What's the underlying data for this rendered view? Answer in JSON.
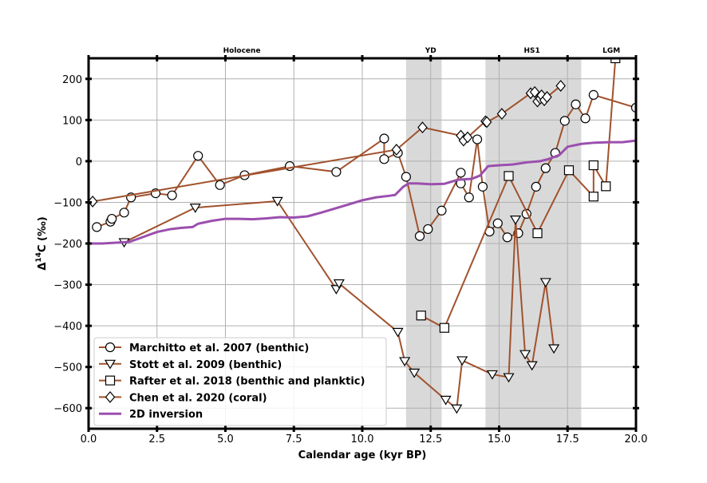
{
  "chart_data": {
    "type": "line",
    "xlabel": "Calendar age (kyr BP)",
    "ylabel_main": "Δ",
    "ylabel_sup": "14",
    "ylabel_rest": "C (‰)",
    "xlim": [
      0,
      20
    ],
    "ylim": [
      -650,
      250
    ],
    "xticks": [
      0,
      2.5,
      5,
      7.5,
      10,
      12.5,
      15,
      17.5,
      20
    ],
    "xtick_labels": [
      "0.0",
      "2.5",
      "5.0",
      "7.5",
      "10.0",
      "12.5",
      "15.0",
      "17.5",
      "20.0"
    ],
    "yticks": [
      200,
      100,
      0,
      -100,
      -200,
      -300,
      -400,
      -500,
      -600
    ],
    "ytick_labels": [
      "200",
      "100",
      "0",
      "−100",
      "−200",
      "−300",
      "−400",
      "−500",
      "−600"
    ],
    "grid": true,
    "legend_position": "lower-left",
    "bands": [
      {
        "label": "Holocene",
        "x0": null,
        "x1": null,
        "center": 5.6
      },
      {
        "label": "YD",
        "x0": 11.6,
        "x1": 12.9,
        "center": 12.5
      },
      {
        "label": "HS1",
        "x0": 14.5,
        "x1": 18.0,
        "center": 16.2
      },
      {
        "label": "LGM",
        "x0": null,
        "x1": null,
        "center": 19.1
      }
    ],
    "series": [
      {
        "name": "Marchitto et al. 2007 (benthic)",
        "color": "#a0522d",
        "marker": "circle",
        "points": [
          [
            0.3,
            -160
          ],
          [
            0.8,
            -147
          ],
          [
            0.85,
            -140
          ],
          [
            1.3,
            -125
          ],
          [
            1.55,
            -88
          ],
          [
            2.45,
            -78
          ],
          [
            3.05,
            -83
          ],
          [
            4.0,
            13
          ],
          [
            4.8,
            -58
          ],
          [
            5.7,
            -34
          ],
          [
            7.35,
            -12
          ],
          [
            9.05,
            -26
          ],
          [
            10.8,
            55
          ],
          [
            10.8,
            5
          ],
          [
            11.3,
            20
          ],
          [
            11.6,
            -38
          ],
          [
            12.1,
            -182
          ],
          [
            12.4,
            -165
          ],
          [
            12.9,
            -120
          ],
          [
            13.6,
            -28
          ],
          [
            13.6,
            -54
          ],
          [
            13.9,
            -88
          ],
          [
            14.2,
            53
          ],
          [
            14.4,
            -62
          ],
          [
            14.65,
            -171
          ],
          [
            14.95,
            -151
          ],
          [
            15.3,
            -185
          ],
          [
            15.7,
            -175
          ],
          [
            16.0,
            -128
          ],
          [
            16.35,
            -62
          ],
          [
            16.7,
            -17
          ],
          [
            17.05,
            20
          ],
          [
            17.4,
            98
          ],
          [
            17.8,
            138
          ],
          [
            18.15,
            104
          ],
          [
            18.45,
            161
          ],
          [
            20.0,
            130
          ]
        ]
      },
      {
        "name": "Stott et al. 2009 (benthic)",
        "color": "#a0522d",
        "marker": "triangle-down",
        "points": [
          [
            1.3,
            -197
          ],
          [
            3.9,
            -113
          ],
          [
            6.9,
            -97
          ],
          [
            9.05,
            -311
          ],
          [
            9.15,
            -297
          ],
          [
            11.3,
            -415
          ],
          [
            11.55,
            -486
          ],
          [
            11.9,
            -514
          ],
          [
            13.05,
            -580
          ],
          [
            13.45,
            -601
          ],
          [
            13.65,
            -484
          ],
          [
            14.75,
            -518
          ],
          [
            15.35,
            -525
          ],
          [
            15.6,
            -142
          ],
          [
            15.95,
            -469
          ],
          [
            16.2,
            -496
          ],
          [
            16.7,
            -294
          ],
          [
            17.0,
            -455
          ]
        ]
      },
      {
        "name": "Rafter et al. 2018 (benthic and planktic)",
        "color": "#a0522d",
        "marker": "square",
        "points": [
          [
            12.15,
            -375
          ],
          [
            13.0,
            -405
          ],
          [
            15.35,
            -36
          ],
          [
            16.4,
            -175
          ],
          [
            17.55,
            -22
          ],
          [
            18.45,
            -86
          ],
          [
            18.45,
            -10
          ],
          [
            18.9,
            -61
          ],
          [
            19.25,
            250
          ]
        ]
      },
      {
        "name": "Chen et al. 2020 (coral)",
        "color": "#a0522d",
        "marker": "diamond",
        "points": [
          [
            0.15,
            -98
          ],
          [
            11.25,
            28
          ],
          [
            12.2,
            82
          ],
          [
            13.6,
            62
          ],
          [
            13.7,
            50
          ],
          [
            13.85,
            58
          ],
          [
            14.5,
            97
          ],
          [
            14.55,
            95
          ],
          [
            15.1,
            115
          ],
          [
            16.15,
            165
          ],
          [
            16.3,
            168
          ],
          [
            16.4,
            145
          ],
          [
            16.5,
            152
          ],
          [
            16.55,
            160
          ],
          [
            16.65,
            148
          ],
          [
            16.75,
            156
          ],
          [
            17.25,
            183
          ]
        ]
      },
      {
        "name": "2D inversion",
        "color": "#9b4fae",
        "marker": "none",
        "points": [
          [
            0.0,
            -200
          ],
          [
            0.5,
            -200
          ],
          [
            1.0,
            -198
          ],
          [
            1.5,
            -196
          ],
          [
            2.0,
            -184
          ],
          [
            2.5,
            -172
          ],
          [
            3.0,
            -165
          ],
          [
            3.4,
            -162
          ],
          [
            3.8,
            -160
          ],
          [
            4.0,
            -152
          ],
          [
            4.5,
            -145
          ],
          [
            5.0,
            -140
          ],
          [
            5.5,
            -140
          ],
          [
            6.0,
            -141
          ],
          [
            6.5,
            -139
          ],
          [
            7.0,
            -136
          ],
          [
            7.5,
            -137
          ],
          [
            8.0,
            -134
          ],
          [
            8.5,
            -125
          ],
          [
            9.0,
            -115
          ],
          [
            9.5,
            -105
          ],
          [
            10.0,
            -95
          ],
          [
            10.5,
            -88
          ],
          [
            11.0,
            -84
          ],
          [
            11.2,
            -82
          ],
          [
            11.5,
            -62
          ],
          [
            11.7,
            -54
          ],
          [
            12.0,
            -54
          ],
          [
            12.5,
            -56
          ],
          [
            13.0,
            -55
          ],
          [
            13.5,
            -45
          ],
          [
            14.0,
            -43
          ],
          [
            14.3,
            -35
          ],
          [
            14.6,
            -12
          ],
          [
            15.0,
            -10
          ],
          [
            15.5,
            -8
          ],
          [
            16.0,
            -3
          ],
          [
            16.5,
            0
          ],
          [
            16.8,
            5
          ],
          [
            17.2,
            15
          ],
          [
            17.5,
            35
          ],
          [
            18.0,
            42
          ],
          [
            18.5,
            45
          ],
          [
            19.0,
            46
          ],
          [
            19.5,
            46
          ],
          [
            20.0,
            50
          ]
        ]
      }
    ]
  }
}
